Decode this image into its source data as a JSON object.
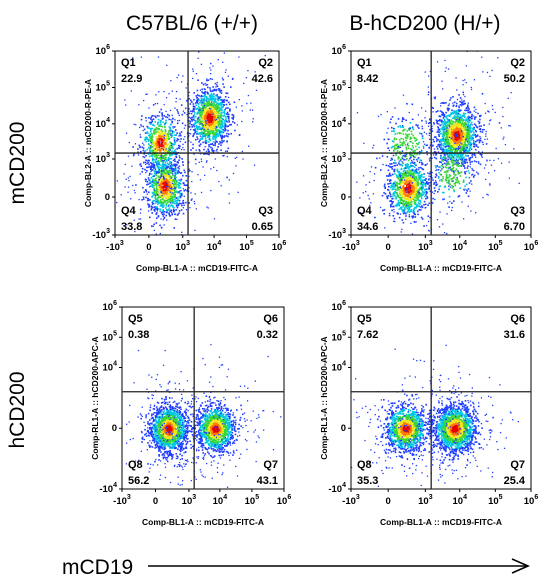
{
  "column_titles": [
    "C57BL/6 (+/+)",
    "B-hCD200 (H/+)"
  ],
  "row_titles": [
    "mCD200",
    "hCD200"
  ],
  "bottom_axis_label": "mCD19",
  "chart_data": [
    {
      "type": "scatter",
      "title": "C57BL/6 (+/+)",
      "row": "mCD200",
      "xlabel": "Comp-BL1-A :: mCD19-FITC-A",
      "ylabel": "Comp-BL2-A :: mCD200-R-PE-A",
      "x_ticks": [
        "-10^3",
        "0",
        "10^3",
        "10^4",
        "10^5",
        "10^6"
      ],
      "y_ticks": [
        "-10^3",
        "0",
        "10^3",
        "10^4",
        "10^5",
        "10^6"
      ],
      "quadrants": [
        {
          "name": "Q1",
          "percent": "22.9"
        },
        {
          "name": "Q2",
          "percent": "42.6"
        },
        {
          "name": "Q3",
          "percent": "0.65"
        },
        {
          "name": "Q4",
          "percent": "33.8"
        }
      ],
      "gate": {
        "x": 1500,
        "y": 1500
      },
      "clusters": [
        {
          "x": 200,
          "y": 100,
          "share": 0.34
        },
        {
          "x": 120,
          "y": 3000,
          "share": 0.23
        },
        {
          "x": 7000,
          "y": 15000,
          "share": 0.43
        }
      ]
    },
    {
      "type": "scatter",
      "title": "B-hCD200 (H/+)",
      "row": "mCD200",
      "xlabel": "Comp-BL1-A :: mCD19-FITC-A",
      "ylabel": "Comp-BL2-A :: mCD200-R-PE-A",
      "x_ticks": [
        "-10^3",
        "0",
        "10^3",
        "10^4",
        "10^5",
        "10^6"
      ],
      "y_ticks": [
        "-10^3",
        "0",
        "10^3",
        "10^4",
        "10^5",
        "10^6"
      ],
      "quadrants": [
        {
          "name": "Q1",
          "percent": "8.42"
        },
        {
          "name": "Q2",
          "percent": "50.2"
        },
        {
          "name": "Q3",
          "percent": "6.70"
        },
        {
          "name": "Q4",
          "percent": "34.6"
        }
      ],
      "gate": {
        "x": 1500,
        "y": 1500
      },
      "clusters": [
        {
          "x": 250,
          "y": 80,
          "share": 0.35
        },
        {
          "x": 200,
          "y": 2500,
          "share": 0.08
        },
        {
          "x": 8000,
          "y": 5000,
          "share": 0.5
        },
        {
          "x": 6000,
          "y": 400,
          "share": 0.07
        }
      ]
    },
    {
      "type": "scatter",
      "title": "C57BL/6 (+/+)",
      "row": "hCD200",
      "xlabel": "Comp-BL1-A :: mCD19-FITC-A",
      "ylabel": "Comp-RL1-A :: hCD200-APC-A",
      "x_ticks": [
        "-10^3",
        "0",
        "10^3",
        "10^4",
        "10^5",
        "10^6"
      ],
      "y_ticks": [
        "-10^4",
        "0",
        "10^4",
        "10^5",
        "10^6"
      ],
      "quadrants": [
        {
          "name": "Q5",
          "percent": "0.38"
        },
        {
          "name": "Q6",
          "percent": "0.32"
        },
        {
          "name": "Q7",
          "percent": "43.1"
        },
        {
          "name": "Q8",
          "percent": "56.2"
        }
      ],
      "gate": {
        "x": 1500,
        "y": 1500
      },
      "clusters": [
        {
          "x": 150,
          "y": 0,
          "share": 0.56
        },
        {
          "x": 7000,
          "y": 0,
          "share": 0.43
        }
      ]
    },
    {
      "type": "scatter",
      "title": "B-hCD200 (H/+)",
      "row": "hCD200",
      "xlabel": "Comp-BL1-A :: mCD19-FITC-A",
      "ylabel": "Comp-RL1-A :: hCD200-APC-A",
      "x_ticks": [
        "-10^3",
        "0",
        "10^3",
        "10^4",
        "10^5",
        "10^6"
      ],
      "y_ticks": [
        "-10^4",
        "0",
        "10^4",
        "10^5",
        "10^6"
      ],
      "quadrants": [
        {
          "name": "Q5",
          "percent": "7.62"
        },
        {
          "name": "Q6",
          "percent": "31.6"
        },
        {
          "name": "Q7",
          "percent": "25.4"
        },
        {
          "name": "Q8",
          "percent": "35.3"
        }
      ],
      "gate": {
        "x": 1500,
        "y": 1500
      },
      "clusters": [
        {
          "x": 200,
          "y": 0,
          "share": 0.43
        },
        {
          "x": 7000,
          "y": 0,
          "share": 0.57
        }
      ]
    }
  ],
  "colors": {
    "density_low": "#1f3cff",
    "density_mid_low": "#00c8e0",
    "density_mid": "#39d63a",
    "density_mid_high": "#f2e71c",
    "density_high": "#ff7a00",
    "density_peak": "#e60000",
    "gate_line": "#222222",
    "frame": "#000000"
  }
}
